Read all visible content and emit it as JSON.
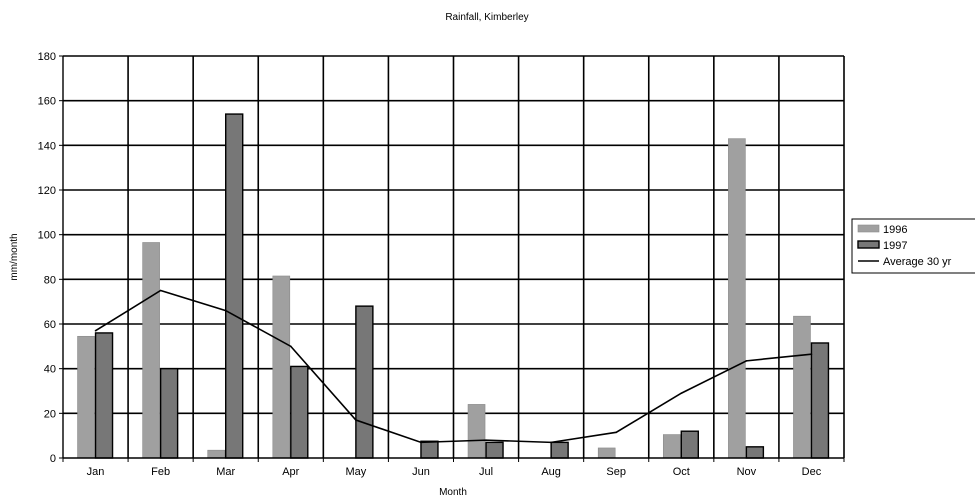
{
  "chart_data": {
    "type": "bar",
    "title": "Rainfall,  Kimberley",
    "xlabel": "Month",
    "ylabel": "mm/month",
    "ylim": [
      0,
      180
    ],
    "yticks": [
      0,
      20,
      40,
      60,
      80,
      100,
      120,
      140,
      160,
      180
    ],
    "grid": true,
    "legend_position": "right",
    "categories": [
      "Jan",
      "Feb",
      "Mar",
      "Apr",
      "May",
      "Jun",
      "Jul",
      "Aug",
      "Sep",
      "Oct",
      "Nov",
      "Dec"
    ],
    "series": [
      {
        "name": "1996",
        "kind": "bar",
        "color": "#a0a0a0",
        "values": [
          54.5,
          96.5,
          3.5,
          81.5,
          0,
          0,
          24,
          0,
          4.5,
          10.5,
          143,
          63.5
        ]
      },
      {
        "name": "1997",
        "kind": "bar",
        "color": "#777777",
        "values": [
          56,
          40,
          154,
          41,
          68,
          7.5,
          7,
          7,
          0,
          12,
          5,
          51.5
        ]
      },
      {
        "name": "Average 30 yr",
        "kind": "line",
        "color": "#000000",
        "values": [
          57,
          75,
          66,
          50,
          17,
          7,
          8,
          7,
          11.5,
          29,
          43.5,
          46.5
        ]
      }
    ]
  }
}
